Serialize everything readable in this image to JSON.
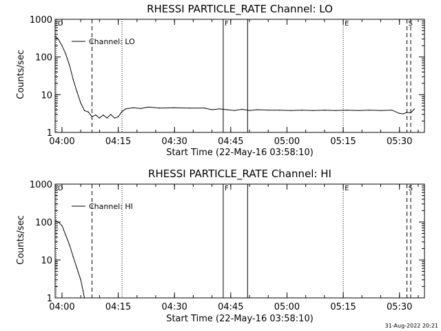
{
  "footer_timestamp": "31-Aug-2022 20:21",
  "chart_data": [
    {
      "type": "line",
      "title": "RHESSI PARTICLE_RATE Channel: LO",
      "xlabel": "Start Time (22-May-16 03:58:10)",
      "ylabel": "Counts/sec",
      "y_scale": "log",
      "ylim": [
        1,
        1000
      ],
      "xlim": [
        "03:58:10",
        "05:36:40"
      ],
      "x_ticks": [
        "04:00",
        "04:15",
        "04:30",
        "04:45",
        "05:00",
        "05:15",
        "05:30"
      ],
      "y_ticks": [
        "1",
        "10",
        "100",
        "1000"
      ],
      "legend": {
        "entry": "Channel: LO",
        "position": "top-left"
      },
      "markers": [
        {
          "time": "03:58:30",
          "style": "dotted",
          "label": "D"
        },
        {
          "time": "04:08:00",
          "style": "dashed",
          "label": ""
        },
        {
          "time": "04:16:00",
          "style": "dotted",
          "label": ""
        },
        {
          "time": "04:43:00",
          "style": "solid",
          "label": "F"
        },
        {
          "time": "04:49:30",
          "style": "solid",
          "label": ""
        },
        {
          "time": "05:15:00",
          "style": "dotted",
          "label": "E"
        },
        {
          "time": "05:32:00",
          "style": "dashed",
          "label": "S"
        },
        {
          "time": "05:33:00",
          "style": "dashed",
          "label": ""
        }
      ],
      "series": [
        {
          "name": "Channel: LO",
          "x": [
            "03:58:10",
            "03:59:00",
            "04:00:00",
            "04:01:00",
            "04:02:00",
            "04:03:00",
            "04:04:00",
            "04:05:00",
            "04:06:00",
            "04:07:00",
            "04:08:00",
            "04:09:00",
            "04:10:00",
            "04:11:00",
            "04:12:00",
            "04:13:00",
            "04:14:00",
            "04:15:00",
            "04:16:00",
            "04:17:00",
            "04:19:00",
            "04:21:00",
            "04:23:00",
            "04:26:00",
            "04:30:00",
            "04:34:00",
            "04:38:00",
            "04:40:00",
            "04:42:00",
            "04:44:00",
            "04:46:00",
            "04:48:00",
            "04:50:00",
            "04:52:00",
            "04:55:00",
            "04:58:00",
            "05:01:00",
            "05:04:00",
            "05:07:00",
            "05:10:00",
            "05:13:00",
            "05:16:00",
            "05:19:00",
            "05:22:00",
            "05:25:00",
            "05:28:00",
            "05:30:00",
            "05:31:00",
            "05:32:00",
            "05:33:00",
            "05:34:00"
          ],
          "values": [
            350,
            300,
            200,
            120,
            60,
            25,
            12,
            6,
            3.8,
            3.5,
            2.6,
            2.9,
            2.4,
            2.9,
            2.4,
            3.0,
            2.4,
            2.6,
            3.6,
            4.2,
            4.5,
            4.3,
            4.7,
            4.4,
            4.5,
            4.4,
            4.4,
            4.0,
            4.2,
            4.0,
            3.8,
            4.1,
            3.8,
            4.0,
            3.9,
            3.9,
            3.8,
            3.9,
            3.8,
            3.9,
            3.8,
            3.9,
            3.8,
            3.9,
            3.8,
            3.9,
            3.2,
            3.1,
            3.4,
            3.3,
            4.2
          ]
        }
      ]
    },
    {
      "type": "line",
      "title": "RHESSI PARTICLE_RATE Channel: HI",
      "xlabel": "Start Time (22-May-16 03:58:10)",
      "ylabel": "Counts/sec",
      "y_scale": "log",
      "ylim": [
        1,
        1000
      ],
      "xlim": [
        "03:58:10",
        "05:36:40"
      ],
      "x_ticks": [
        "04:00",
        "04:15",
        "04:30",
        "04:45",
        "05:00",
        "05:15",
        "05:30"
      ],
      "y_ticks": [
        "1",
        "10",
        "100",
        "1000"
      ],
      "legend": {
        "entry": "Channel: HI",
        "position": "top-left"
      },
      "markers": [
        {
          "time": "03:58:30",
          "style": "dotted",
          "label": "D"
        },
        {
          "time": "04:08:00",
          "style": "dashed",
          "label": ""
        },
        {
          "time": "04:16:00",
          "style": "dotted",
          "label": ""
        },
        {
          "time": "04:43:00",
          "style": "solid",
          "label": "F"
        },
        {
          "time": "04:49:30",
          "style": "solid",
          "label": ""
        },
        {
          "time": "05:15:00",
          "style": "dotted",
          "label": "E"
        },
        {
          "time": "05:32:00",
          "style": "dashed",
          "label": "S"
        },
        {
          "time": "05:33:00",
          "style": "dashed",
          "label": ""
        }
      ],
      "series": [
        {
          "name": "Channel: HI",
          "x": [
            "03:58:10",
            "03:59:00",
            "04:00:00",
            "04:01:00",
            "04:02:00",
            "04:03:00",
            "04:04:00",
            "04:05:00",
            "04:06:00"
          ],
          "values": [
            110,
            100,
            80,
            45,
            25,
            12,
            6,
            3,
            1
          ]
        }
      ]
    }
  ]
}
